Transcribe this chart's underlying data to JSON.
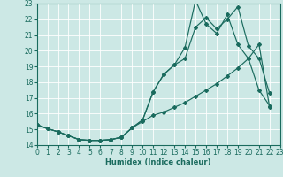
{
  "xlabel": "Humidex (Indice chaleur)",
  "background_color": "#cce8e5",
  "line_color": "#1a6b5e",
  "grid_color": "#ffffff",
  "xlim": [
    0,
    23
  ],
  "ylim": [
    14,
    23
  ],
  "xticks": [
    0,
    1,
    2,
    3,
    4,
    5,
    6,
    7,
    8,
    9,
    10,
    11,
    12,
    13,
    14,
    15,
    16,
    17,
    18,
    19,
    20,
    21,
    22,
    23
  ],
  "yticks": [
    14,
    15,
    16,
    17,
    18,
    19,
    20,
    21,
    22,
    23
  ],
  "series": [
    {
      "x": [
        0,
        1,
        2,
        3,
        4,
        5,
        6,
        7,
        8,
        9,
        10,
        11,
        12,
        13,
        14,
        15,
        16,
        17,
        18,
        19,
        20,
        21,
        22
      ],
      "y": [
        15.3,
        15.05,
        14.85,
        14.6,
        14.35,
        14.3,
        14.3,
        14.35,
        14.5,
        15.1,
        15.6,
        17.4,
        18.5,
        19.1,
        20.2,
        23.2,
        21.7,
        21.1,
        22.3,
        20.4,
        19.5,
        17.5,
        16.5
      ]
    },
    {
      "x": [
        0,
        1,
        2,
        3,
        4,
        5,
        6,
        7,
        8,
        9,
        10,
        11,
        12,
        13,
        14,
        15,
        16,
        17,
        18,
        19,
        20,
        21,
        22
      ],
      "y": [
        15.3,
        15.05,
        14.85,
        14.6,
        14.35,
        14.3,
        14.3,
        14.35,
        14.5,
        15.1,
        15.6,
        17.4,
        18.5,
        19.1,
        19.5,
        21.5,
        22.1,
        21.4,
        22.0,
        22.8,
        20.3,
        19.5,
        17.3
      ]
    },
    {
      "x": [
        0,
        1,
        2,
        3,
        4,
        5,
        6,
        7,
        8,
        9,
        10,
        11,
        12,
        13,
        14,
        15,
        16,
        17,
        18,
        19,
        20,
        21,
        22
      ],
      "y": [
        15.3,
        15.05,
        14.85,
        14.6,
        14.35,
        14.3,
        14.3,
        14.35,
        14.5,
        15.1,
        15.5,
        15.9,
        16.1,
        16.4,
        16.7,
        17.1,
        17.5,
        17.9,
        18.4,
        18.9,
        19.5,
        20.4,
        16.4
      ]
    }
  ]
}
